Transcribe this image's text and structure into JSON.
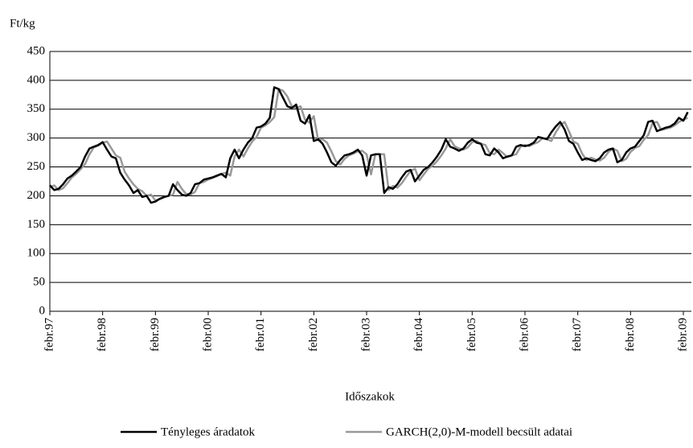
{
  "chart_data": {
    "type": "line",
    "y_label": "Ft/kg",
    "x_label": "Időszakok",
    "categories": [
      "febr.97",
      null,
      null,
      null,
      null,
      null,
      null,
      null,
      null,
      null,
      null,
      null,
      "febr.98",
      null,
      null,
      null,
      null,
      null,
      null,
      null,
      null,
      null,
      null,
      null,
      "febr.99",
      null,
      null,
      null,
      null,
      null,
      null,
      null,
      null,
      null,
      null,
      null,
      "febr.00",
      null,
      null,
      null,
      null,
      null,
      null,
      null,
      null,
      null,
      null,
      null,
      "febr.01",
      null,
      null,
      null,
      null,
      null,
      null,
      null,
      null,
      null,
      null,
      null,
      "febr.02",
      null,
      null,
      null,
      null,
      null,
      null,
      null,
      null,
      null,
      null,
      null,
      "febr.03",
      null,
      null,
      null,
      null,
      null,
      null,
      null,
      null,
      null,
      null,
      null,
      "febr.04",
      null,
      null,
      null,
      null,
      null,
      null,
      null,
      null,
      null,
      null,
      null,
      "febr.05",
      null,
      null,
      null,
      null,
      null,
      null,
      null,
      null,
      null,
      null,
      null,
      "febr.06",
      null,
      null,
      null,
      null,
      null,
      null,
      null,
      null,
      null,
      null,
      null,
      "febr.07",
      null,
      null,
      null,
      null,
      null,
      null,
      null,
      null,
      null,
      null,
      null,
      "febr.08",
      null,
      null,
      null,
      null,
      null,
      null,
      null,
      null,
      null,
      null,
      null,
      "febr.09",
      null
    ],
    "series": [
      {
        "name": "Tényleges áradatok",
        "color": "#000000",
        "values": [
          218,
          210,
          212,
          220,
          230,
          235,
          242,
          250,
          268,
          282,
          285,
          288,
          293,
          280,
          268,
          265,
          240,
          228,
          218,
          205,
          210,
          198,
          200,
          188,
          190,
          195,
          198,
          200,
          220,
          210,
          202,
          200,
          205,
          220,
          222,
          228,
          230,
          232,
          235,
          238,
          232,
          265,
          280,
          265,
          280,
          292,
          300,
          318,
          320,
          325,
          335,
          388,
          385,
          370,
          355,
          352,
          358,
          330,
          325,
          340,
          295,
          298,
          290,
          275,
          258,
          252,
          262,
          270,
          272,
          275,
          280,
          270,
          235,
          270,
          272,
          272,
          205,
          215,
          212,
          220,
          232,
          242,
          245,
          225,
          235,
          245,
          250,
          258,
          268,
          280,
          298,
          285,
          282,
          278,
          282,
          292,
          298,
          292,
          290,
          272,
          270,
          282,
          275,
          265,
          268,
          270,
          285,
          288,
          286,
          288,
          292,
          302,
          300,
          298,
          310,
          320,
          328,
          315,
          295,
          290,
          275,
          262,
          265,
          262,
          260,
          265,
          275,
          280,
          282,
          258,
          262,
          275,
          282,
          285,
          295,
          305,
          328,
          330,
          312,
          315,
          318,
          320,
          325,
          335,
          330,
          345
        ]
      },
      {
        "name": "GARCH(2,0)-M-modell becsült adatai",
        "color": "#999999",
        "values": [
          215,
          218,
          210,
          213,
          222,
          232,
          238,
          246,
          255,
          272,
          284,
          287,
          292,
          294,
          282,
          270,
          266,
          242,
          230,
          220,
          212,
          208,
          200,
          202,
          192,
          194,
          198,
          200,
          202,
          224,
          212,
          203,
          202,
          207,
          222,
          224,
          228,
          231,
          234,
          238,
          240,
          235,
          268,
          280,
          268,
          282,
          294,
          302,
          318,
          322,
          328,
          336,
          385,
          382,
          372,
          355,
          352,
          355,
          332,
          327,
          338,
          296,
          298,
          292,
          277,
          260,
          254,
          264,
          270,
          273,
          277,
          278,
          272,
          237,
          272,
          272,
          272,
          210,
          217,
          214,
          222,
          233,
          243,
          247,
          227,
          237,
          247,
          252,
          260,
          270,
          282,
          298,
          286,
          282,
          280,
          284,
          293,
          295,
          290,
          288,
          274,
          272,
          280,
          274,
          267,
          270,
          272,
          285,
          288,
          286,
          290,
          293,
          300,
          298,
          295,
          310,
          322,
          328,
          312,
          294,
          290,
          273,
          262,
          266,
          263,
          261,
          266,
          276,
          282,
          278,
          260,
          264,
          276,
          283,
          286,
          297,
          305,
          326,
          328,
          314,
          316,
          318,
          322,
          328,
          332,
          335
        ]
      }
    ],
    "ylim": [
      0,
      450
    ],
    "yticks": [
      0,
      50,
      100,
      150,
      200,
      250,
      300,
      350,
      400,
      450
    ],
    "grid": true
  }
}
